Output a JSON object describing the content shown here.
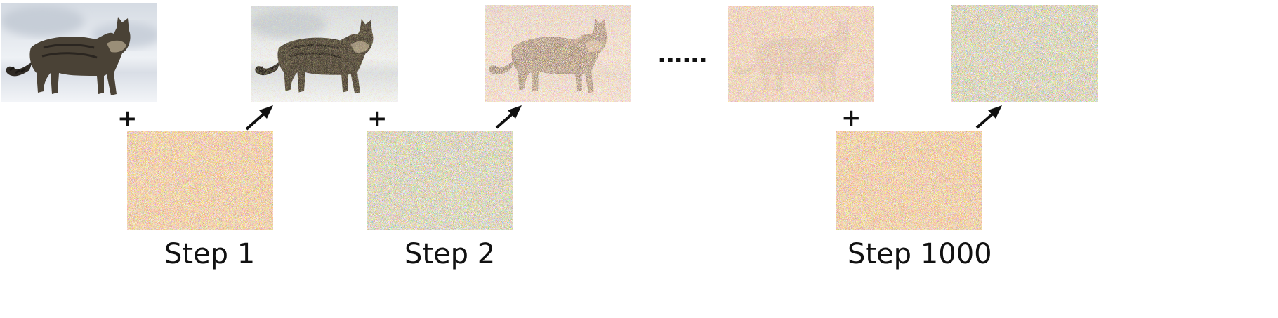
{
  "labels": {
    "step1": "Step 1",
    "step2": "Step 2",
    "step_last": "Step 1000",
    "ellipsis": "......",
    "plus": "+"
  },
  "images": {
    "original": "cat-photo",
    "noisy_1": "cat-photo-slight-noise",
    "noisy_2": "cat-photo-heavy-noise",
    "noisy_999": "cat-silhouette-in-noise",
    "noisy_1000": "pure-noise",
    "noise": "gaussian-noise"
  },
  "colors": {
    "snow": "#e4e8ee",
    "cat_fur": "#4a4236",
    "arrow": "#111111",
    "text": "#111111"
  }
}
